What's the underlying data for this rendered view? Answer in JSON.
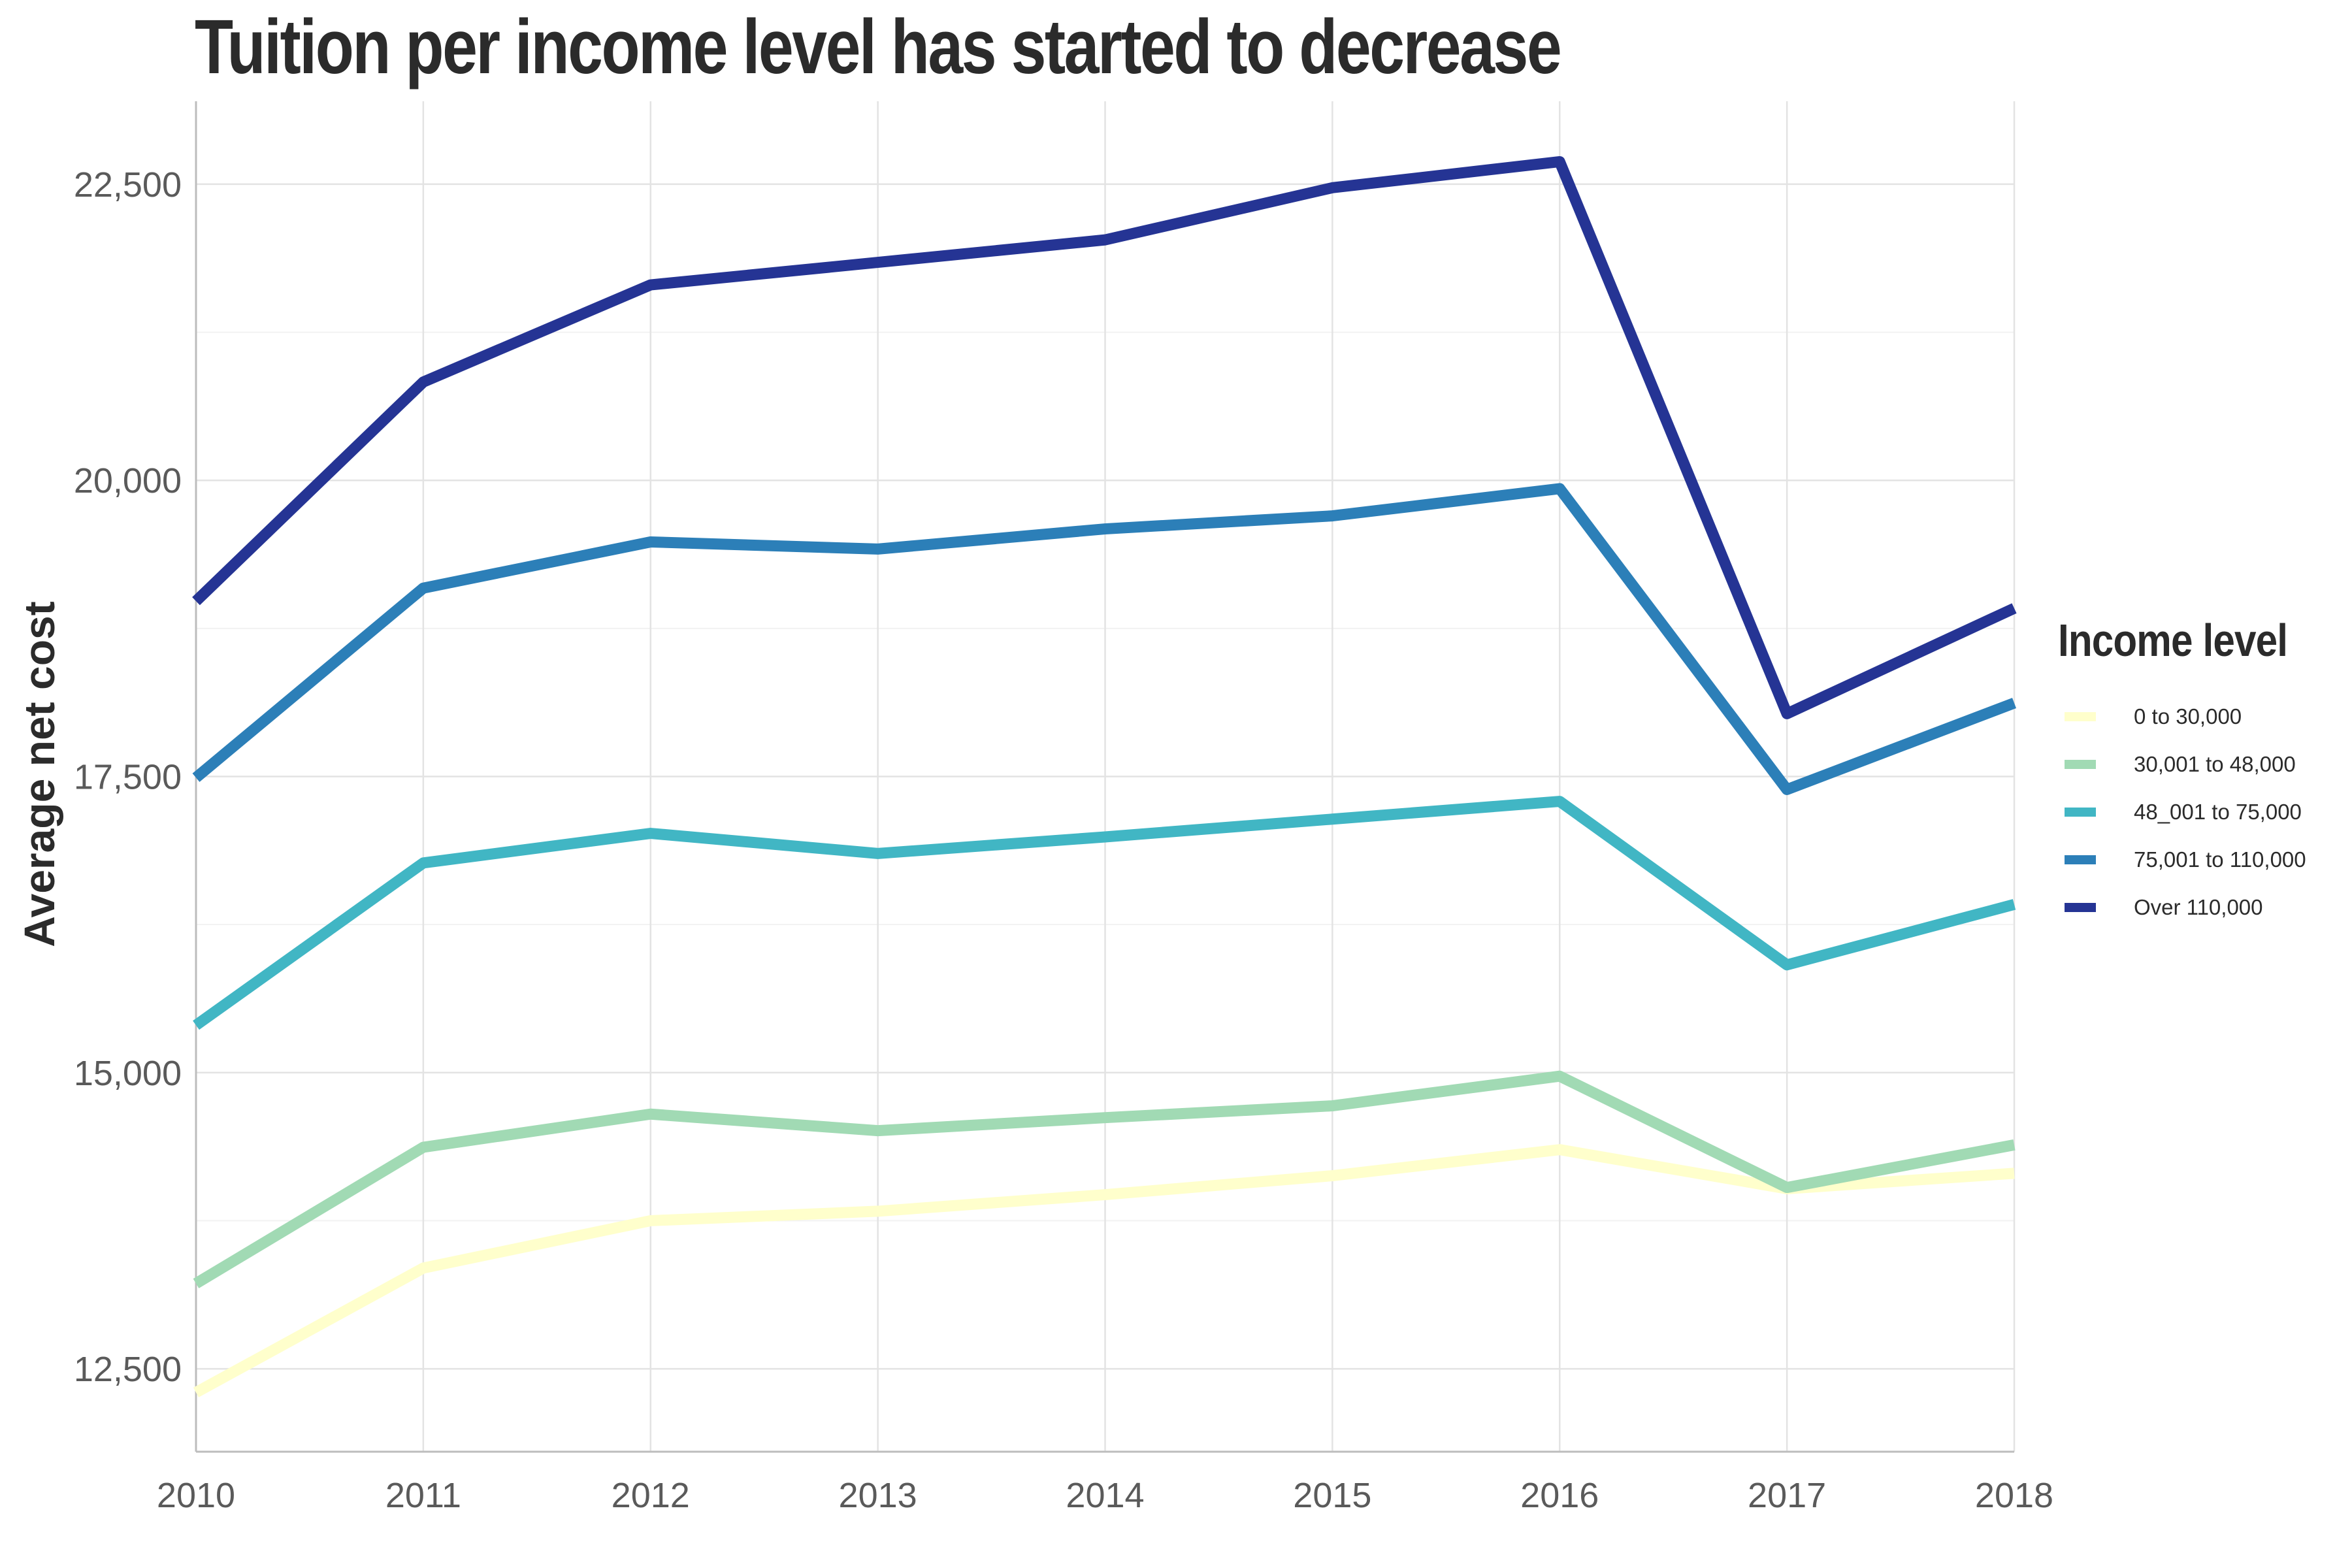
{
  "chart_data": {
    "type": "line",
    "title": "Tuition per income level has started to decrease",
    "xlabel": "",
    "ylabel": "Average net cost",
    "x": [
      2010,
      2011,
      2012,
      2013,
      2014,
      2015,
      2016,
      2017,
      2018
    ],
    "x_ticks": [
      "2010",
      "2011",
      "2012",
      "2013",
      "2014",
      "2015",
      "2016",
      "2017",
      "2018"
    ],
    "y_ticks": [
      12500,
      15000,
      17500,
      20000,
      22500
    ],
    "y_tick_labels": [
      "12,500",
      "15,000",
      "17,500",
      "20,000",
      "22,500"
    ],
    "xlim": [
      2010,
      2018
    ],
    "ylim": [
      11800,
      23200
    ],
    "grid": true,
    "legend": {
      "title": "Income level",
      "placement": "right"
    },
    "series": [
      {
        "name": "0 to 30,000",
        "color": "#ffffcc",
        "values": [
          12300,
          13350,
          13750,
          13830,
          13970,
          14130,
          14350,
          14020,
          14150
        ]
      },
      {
        "name": "30,001 to 48,000",
        "color": "#a1dab4",
        "values": [
          13220,
          14370,
          14650,
          14510,
          14620,
          14720,
          14970,
          14030,
          14390
        ]
      },
      {
        "name": "48_001 to 75,000",
        "color": "#41b6c4",
        "values": [
          15400,
          16770,
          17020,
          16850,
          16990,
          17140,
          17290,
          15910,
          16420
        ]
      },
      {
        "name": "75,001 to 110,000",
        "color": "#2c7fb8",
        "values": [
          17490,
          19090,
          19480,
          19420,
          19590,
          19700,
          19930,
          17390,
          18120
        ]
      },
      {
        "name": "Over 110,000",
        "color": "#253494",
        "values": [
          18980,
          20830,
          21650,
          21840,
          22030,
          22470,
          22690,
          18030,
          18920
        ]
      }
    ]
  }
}
